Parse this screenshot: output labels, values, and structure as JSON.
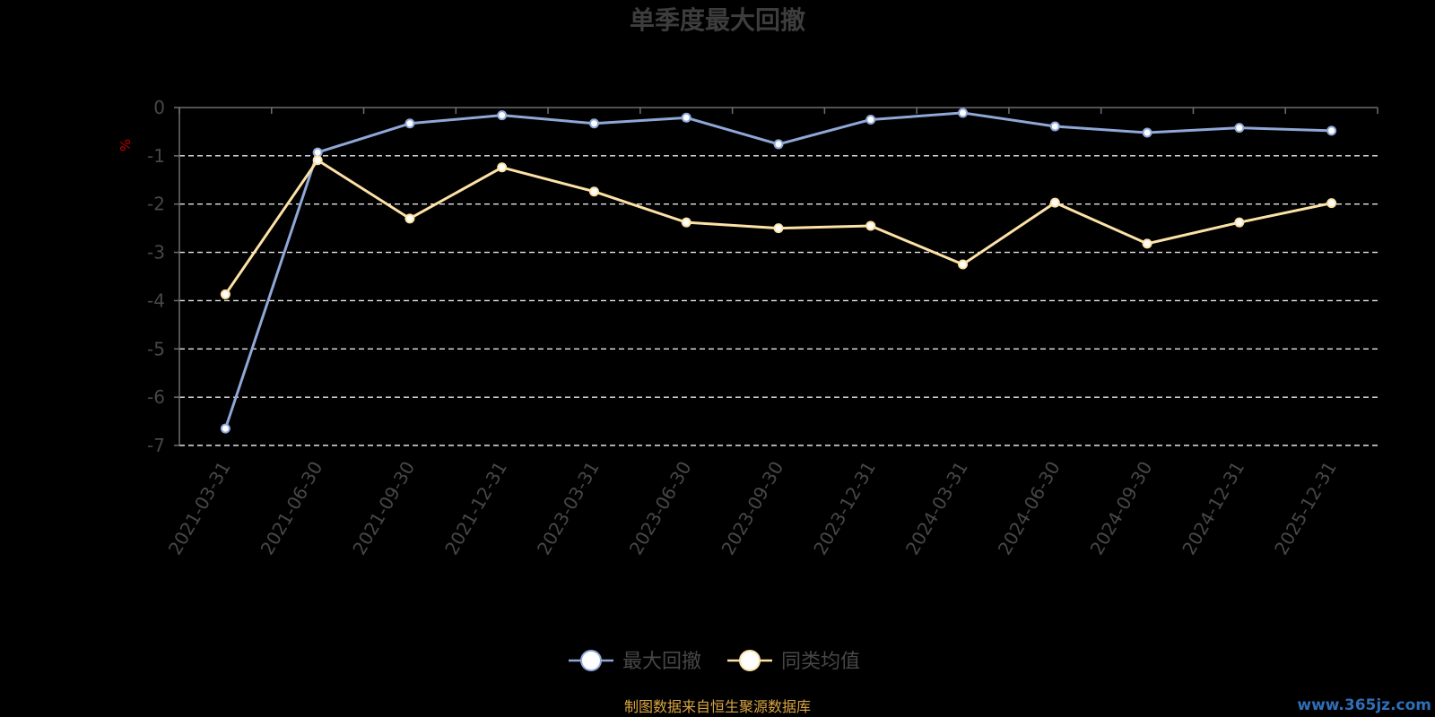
{
  "chart_data": {
    "type": "line",
    "title": "单季度最大回撤",
    "ylabel": "%",
    "ylim": [
      -7,
      0
    ],
    "yticks": [
      "0",
      "-1",
      "-2",
      "-3",
      "-4",
      "-5",
      "-6",
      "-7"
    ],
    "grid": true,
    "legend_position": "bottom",
    "categories": [
      "2021-03-31",
      "2021-06-30",
      "2021-09-30",
      "2021-12-31",
      "2023-03-31",
      "2023-06-30",
      "2023-09-30",
      "2023-12-31",
      "2024-03-31",
      "2024-06-30",
      "2024-09-30",
      "2024-12-31",
      "2025-12-31"
    ],
    "series": [
      {
        "name": "最大回撤",
        "color": "#8fa8d8",
        "values": [
          -6.65,
          -0.93,
          -0.33,
          -0.16,
          -0.33,
          -0.21,
          -0.76,
          -0.25,
          -0.11,
          -0.39,
          -0.52,
          -0.42,
          -0.48
        ]
      },
      {
        "name": "同类均值",
        "color": "#fde2a6",
        "values": [
          -3.87,
          -1.09,
          -2.3,
          -1.24,
          -1.74,
          -2.38,
          -2.5,
          -2.45,
          -3.25,
          -1.97,
          -2.82,
          -2.38,
          -1.98
        ]
      }
    ]
  },
  "footer": {
    "source": "制图数据来自恒生聚源数据库",
    "watermark": "www.365jz.com"
  }
}
